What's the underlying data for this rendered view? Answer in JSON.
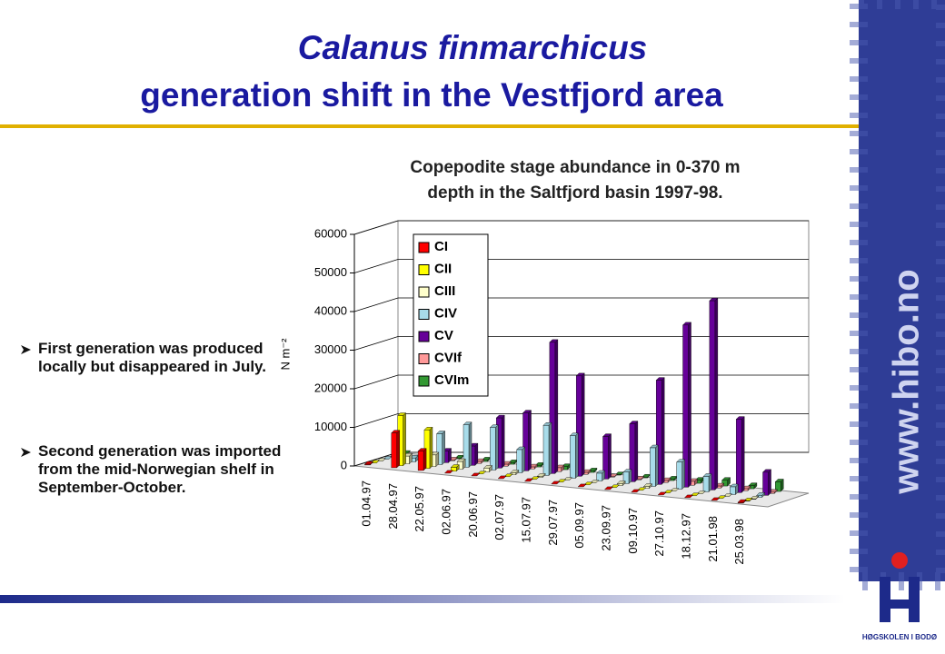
{
  "slide": {
    "title_line1": "Calanus finmarchicus",
    "title_line2": "generation shift in the Vestfjord area",
    "bullets": [
      "First generation was produced locally but disappeared in July.",
      "Second generation was imported from the mid-Norwegian shelf in September-October."
    ],
    "sidebar": "www.hibo.no",
    "logo": "HØGSKOLEN I BODØ"
  },
  "chart_data": {
    "type": "bar3d",
    "title": "Copepodite stage abundance in 0-370 m depth in the Saltfjord basin 1997-98.",
    "y_label": "N m⁻²",
    "categories": [
      "01.04.97",
      "28.04.97",
      "22.05.97",
      "02.06.97",
      "20.06.97",
      "02.07.97",
      "15.07.97",
      "29.07.97",
      "05.09.97",
      "23.09.97",
      "09.10.97",
      "27.10.97",
      "18.12.97",
      "21.01.98",
      "25.03.98"
    ],
    "series": [
      {
        "name": "CI",
        "color": "#ff0000",
        "values": [
          200,
          9000,
          5000,
          0,
          0,
          0,
          0,
          0,
          0,
          0,
          0,
          0,
          0,
          0,
          200
        ]
      },
      {
        "name": "CII",
        "color": "#ffff00",
        "values": [
          0,
          13000,
          10000,
          1000,
          0,
          0,
          0,
          0,
          0,
          0,
          0,
          0,
          0,
          0,
          100
        ]
      },
      {
        "name": "CIII",
        "color": "#ffffcc",
        "values": [
          0,
          2000,
          3000,
          2000,
          1000,
          500,
          300,
          0,
          0,
          500,
          500,
          0,
          0,
          0,
          100
        ]
      },
      {
        "name": "CIV",
        "color": "#a8dcea",
        "values": [
          0,
          1000,
          8000,
          11000,
          11000,
          6000,
          13000,
          11000,
          2000,
          3000,
          10000,
          7000,
          4000,
          2000,
          500
        ]
      },
      {
        "name": "CV",
        "color": "#660099",
        "values": [
          0,
          500,
          3000,
          5000,
          13000,
          15000,
          34000,
          26000,
          11000,
          15000,
          27000,
          42000,
          49000,
          19000,
          6000
        ]
      },
      {
        "name": "CVIf",
        "color": "#ff9999",
        "values": [
          0,
          0,
          200,
          500,
          500,
          500,
          1000,
          500,
          100,
          200,
          500,
          1000,
          500,
          500,
          300
        ]
      },
      {
        "name": "CVIm",
        "color": "#339933",
        "values": [
          0,
          0,
          200,
          400,
          400,
          400,
          800,
          400,
          100,
          200,
          400,
          800,
          1500,
          800,
          2500
        ]
      }
    ],
    "ylim": [
      0,
      60000
    ],
    "yticks": [
      0,
      10000,
      20000,
      30000,
      40000,
      50000,
      60000
    ],
    "grid": true
  }
}
